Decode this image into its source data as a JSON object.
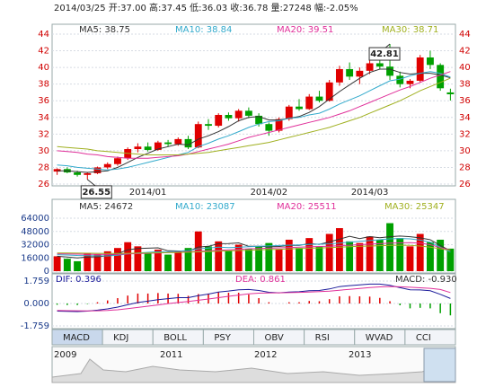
{
  "header": "2014/03/25 开:37.00 高:37.45 低:36.03 收:36.78 量:27248 幅:-2.05%",
  "tabs": [
    "MACD",
    "KDJ",
    "BOLL",
    "PSY",
    "OBV",
    "RSI",
    "WVAD",
    "CCI"
  ],
  "navigator_labels": [
    "2009",
    "2011",
    "2012",
    "2013"
  ],
  "chart_data": [
    {
      "type": "candlestick",
      "ylim": [
        26,
        44
      ],
      "yticks": [
        26,
        28,
        30,
        32,
        34,
        36,
        38,
        40,
        42,
        44
      ],
      "up_color": "#e00000",
      "down_color": "#00a000",
      "categories": [
        null,
        null,
        null,
        null,
        null,
        null,
        null,
        null,
        null,
        "2014/01",
        null,
        null,
        null,
        null,
        null,
        null,
        null,
        null,
        null,
        null,
        null,
        "2014/02",
        null,
        null,
        null,
        null,
        null,
        null,
        null,
        null,
        null,
        "2014/03",
        null,
        null,
        null,
        null,
        null,
        null,
        null,
        null
      ],
      "open": [
        27.5,
        27.8,
        27.4,
        27.1,
        27.3,
        28.0,
        28.4,
        29.1,
        30.2,
        30.5,
        30.1,
        31.0,
        30.8,
        31.4,
        30.4,
        33.2,
        33.0,
        34.3,
        33.9,
        34.8,
        34.2,
        33.2,
        32.4,
        33.8,
        35.3,
        35.0,
        36.5,
        36.0,
        38.2,
        39.8,
        38.9,
        39.6,
        40.5,
        40.1,
        39.0,
        38.0,
        38.4,
        41.2,
        40.3,
        37.0
      ],
      "high": [
        27.9,
        28.0,
        27.6,
        27.4,
        28.1,
        28.6,
        29.3,
        30.4,
        30.9,
        31.0,
        31.2,
        31.3,
        31.6,
        31.8,
        33.5,
        33.8,
        34.5,
        34.6,
        35.0,
        35.2,
        34.5,
        33.4,
        34.0,
        35.5,
        36.2,
        36.8,
        37.2,
        38.5,
        40.2,
        40.6,
        40.0,
        41.0,
        41.8,
        42.81,
        39.5,
        38.6,
        41.5,
        42.0,
        40.5,
        37.45
      ],
      "low": [
        27.1,
        27.3,
        26.9,
        26.55,
        27.2,
        27.8,
        28.2,
        28.9,
        29.8,
        29.9,
        30.0,
        30.5,
        30.6,
        30.2,
        30.3,
        32.5,
        32.8,
        33.6,
        33.5,
        33.9,
        32.9,
        31.8,
        32.2,
        33.6,
        34.8,
        34.9,
        35.8,
        35.9,
        37.8,
        38.5,
        38.0,
        39.2,
        39.8,
        38.5,
        37.6,
        37.5,
        38.2,
        39.8,
        37.2,
        36.03
      ],
      "close": [
        27.8,
        27.4,
        27.1,
        27.3,
        28.0,
        28.4,
        29.1,
        30.2,
        30.5,
        30.1,
        31.0,
        30.8,
        31.4,
        30.4,
        33.2,
        33.0,
        34.3,
        33.9,
        34.8,
        34.2,
        33.2,
        32.4,
        33.8,
        35.3,
        35.0,
        36.5,
        36.0,
        38.2,
        39.8,
        38.9,
        39.6,
        40.5,
        40.1,
        39.0,
        38.0,
        38.4,
        41.2,
        40.3,
        37.5,
        36.78
      ],
      "max_label": "42.81",
      "min_label": "26.55",
      "series": [
        {
          "name": "MA5: 38.75",
          "color": "#333333",
          "values": [
            27.6,
            27.6,
            27.5,
            27.4,
            27.5,
            27.6,
            28.0,
            28.6,
            29.2,
            29.7,
            30.2,
            30.5,
            30.8,
            30.7,
            31.4,
            31.8,
            32.3,
            32.9,
            33.6,
            34.0,
            34.1,
            33.7,
            33.7,
            33.9,
            34.1,
            34.6,
            35.3,
            36.2,
            37.1,
            37.9,
            38.7,
            39.4,
            39.8,
            39.8,
            39.4,
            39.2,
            39.3,
            39.3,
            39.1,
            38.75
          ]
        },
        {
          "name": "MA10: 38.84",
          "color": "#33aacc",
          "values": [
            28.3,
            28.2,
            28.0,
            27.9,
            27.8,
            27.7,
            27.8,
            28.0,
            28.3,
            28.6,
            28.9,
            29.2,
            29.5,
            29.8,
            30.5,
            30.9,
            31.4,
            31.8,
            32.3,
            32.8,
            33.2,
            33.5,
            33.6,
            33.9,
            34.0,
            34.3,
            34.5,
            35.0,
            35.6,
            36.1,
            36.6,
            37.2,
            37.8,
            38.4,
            38.6,
            39.0,
            39.3,
            39.5,
            39.3,
            38.84
          ]
        },
        {
          "name": "MA20: 39.51",
          "color": "#e0309a",
          "values": [
            30.0,
            29.9,
            29.8,
            29.6,
            29.5,
            29.3,
            29.2,
            29.1,
            29.1,
            29.1,
            29.2,
            29.3,
            29.4,
            29.6,
            29.9,
            30.2,
            30.5,
            30.8,
            31.2,
            31.6,
            31.9,
            32.2,
            32.5,
            32.8,
            33.1,
            33.4,
            33.7,
            34.0,
            34.4,
            34.8,
            35.3,
            35.8,
            36.3,
            36.8,
            37.3,
            37.7,
            38.2,
            38.7,
            39.1,
            39.51
          ]
        },
        {
          "name": "MA30: 38.71",
          "color": "#a0b020",
          "values": [
            30.5,
            30.4,
            30.3,
            30.2,
            30.0,
            29.9,
            29.8,
            29.7,
            29.6,
            29.5,
            29.5,
            29.5,
            29.5,
            29.6,
            29.7,
            29.8,
            30.0,
            30.2,
            30.4,
            30.6,
            30.8,
            31.0,
            31.3,
            31.6,
            31.9,
            32.2,
            32.5,
            32.8,
            33.2,
            33.6,
            34.0,
            34.5,
            35.0,
            35.5,
            36.0,
            36.6,
            37.2,
            37.7,
            38.2,
            38.71
          ]
        }
      ]
    },
    {
      "type": "bar",
      "ylim": [
        0,
        64000
      ],
      "yticks": [
        0,
        16000,
        32000,
        48000,
        64000
      ],
      "values": [
        18000,
        15000,
        12000,
        22000,
        20000,
        24000,
        28000,
        35000,
        30000,
        22000,
        26000,
        20000,
        24000,
        28000,
        48000,
        30000,
        36000,
        25000,
        32000,
        27000,
        30000,
        34000,
        26000,
        38000,
        28000,
        40000,
        30000,
        45000,
        52000,
        36000,
        34000,
        42000,
        38000,
        58000,
        40000,
        30000,
        45000,
        35000,
        38000,
        27248
      ],
      "series": [
        {
          "name": "MA5: 24672",
          "color": "#333333",
          "values": [
            18000,
            17000,
            16000,
            17000,
            17400,
            18600,
            21200,
            25800,
            27400,
            27800,
            28200,
            24600,
            24400,
            24000,
            29200,
            30000,
            33200,
            33400,
            34200,
            30000,
            30000,
            29600,
            29800,
            31000,
            31200,
            33200,
            32400,
            35400,
            38600,
            42200,
            39400,
            41800,
            40400,
            41600,
            42400,
            41600,
            40200,
            38000,
            31000,
            24672
          ]
        },
        {
          "name": "MA10: 23087",
          "color": "#33aacc",
          "values": [
            20000,
            19500,
            19000,
            18800,
            18600,
            18400,
            19200,
            20800,
            22000,
            22800,
            23400,
            23600,
            24200,
            25000,
            27000,
            28000,
            29000,
            28500,
            28800,
            29500,
            30000,
            30500,
            31000,
            31500,
            31800,
            32200,
            32600,
            33000,
            34000,
            35000,
            36000,
            37000,
            38000,
            39000,
            39500,
            39000,
            37500,
            35000,
            29000,
            23087
          ]
        },
        {
          "name": "MA20: 25511",
          "color": "#e0309a",
          "values": [
            21000,
            20800,
            20600,
            20400,
            20300,
            20200,
            20400,
            20800,
            21200,
            21600,
            22000,
            22400,
            22800,
            23300,
            24000,
            24600,
            25200,
            25800,
            26400,
            27000,
            27400,
            27800,
            28200,
            28600,
            29000,
            29400,
            29800,
            30200,
            30800,
            31400,
            32000,
            32600,
            33200,
            33800,
            34200,
            34400,
            33800,
            32000,
            28500,
            25511
          ]
        },
        {
          "name": "MA30: 25347",
          "color": "#a0b020",
          "values": [
            22000,
            21900,
            21800,
            21700,
            21600,
            21500,
            21500,
            21600,
            21800,
            22000,
            22200,
            22400,
            22600,
            22900,
            23300,
            23700,
            24100,
            24500,
            24900,
            25300,
            25700,
            26100,
            26500,
            26900,
            27300,
            27700,
            28100,
            28500,
            29000,
            29500,
            30000,
            30400,
            30800,
            31200,
            31400,
            31200,
            30400,
            29000,
            27000,
            25347
          ]
        }
      ]
    },
    {
      "type": "macd",
      "ylim": [
        -1.759,
        1.759
      ],
      "yticks": [
        -1.759,
        {
          "value": 0,
          "label": "0.000"
        },
        1.759
      ],
      "hist_name": "MACD: -0.930",
      "up_color": "#e00000",
      "down_color": "#00a000",
      "values": [
        -0.1,
        -0.12,
        -0.12,
        -0.04,
        0.1,
        0.24,
        0.42,
        0.62,
        0.78,
        0.78,
        0.82,
        0.78,
        0.76,
        0.6,
        0.74,
        0.78,
        0.88,
        0.84,
        0.84,
        0.7,
        0.42,
        0.1,
        0.0,
        0.1,
        0.1,
        0.2,
        0.18,
        0.34,
        0.56,
        0.58,
        0.56,
        0.54,
        0.44,
        0.18,
        -0.14,
        -0.38,
        -0.34,
        -0.38,
        -0.76,
        -0.93
      ],
      "series": [
        {
          "name": "DIF: 0.396",
          "color": "#1a1a9a",
          "values": [
            -0.6,
            -0.62,
            -0.63,
            -0.6,
            -0.52,
            -0.42,
            -0.28,
            -0.1,
            0.08,
            0.18,
            0.3,
            0.38,
            0.46,
            0.46,
            0.62,
            0.74,
            0.9,
            0.98,
            1.08,
            1.1,
            1.02,
            0.88,
            0.84,
            0.9,
            0.92,
            1.0,
            1.02,
            1.14,
            1.32,
            1.4,
            1.46,
            1.52,
            1.52,
            1.42,
            1.24,
            1.08,
            1.06,
            1.0,
            0.72,
            0.396
          ]
        },
        {
          "name": "DEA: 0.861",
          "color": "#e0309a",
          "values": [
            -0.55,
            -0.56,
            -0.57,
            -0.58,
            -0.57,
            -0.54,
            -0.49,
            -0.41,
            -0.31,
            -0.21,
            -0.11,
            -0.01,
            0.08,
            0.16,
            0.25,
            0.35,
            0.46,
            0.56,
            0.66,
            0.75,
            0.81,
            0.83,
            0.84,
            0.85,
            0.87,
            0.9,
            0.93,
            0.97,
            1.04,
            1.11,
            1.18,
            1.25,
            1.3,
            1.33,
            1.31,
            1.27,
            1.23,
            1.19,
            1.1,
            0.861
          ]
        }
      ]
    }
  ]
}
